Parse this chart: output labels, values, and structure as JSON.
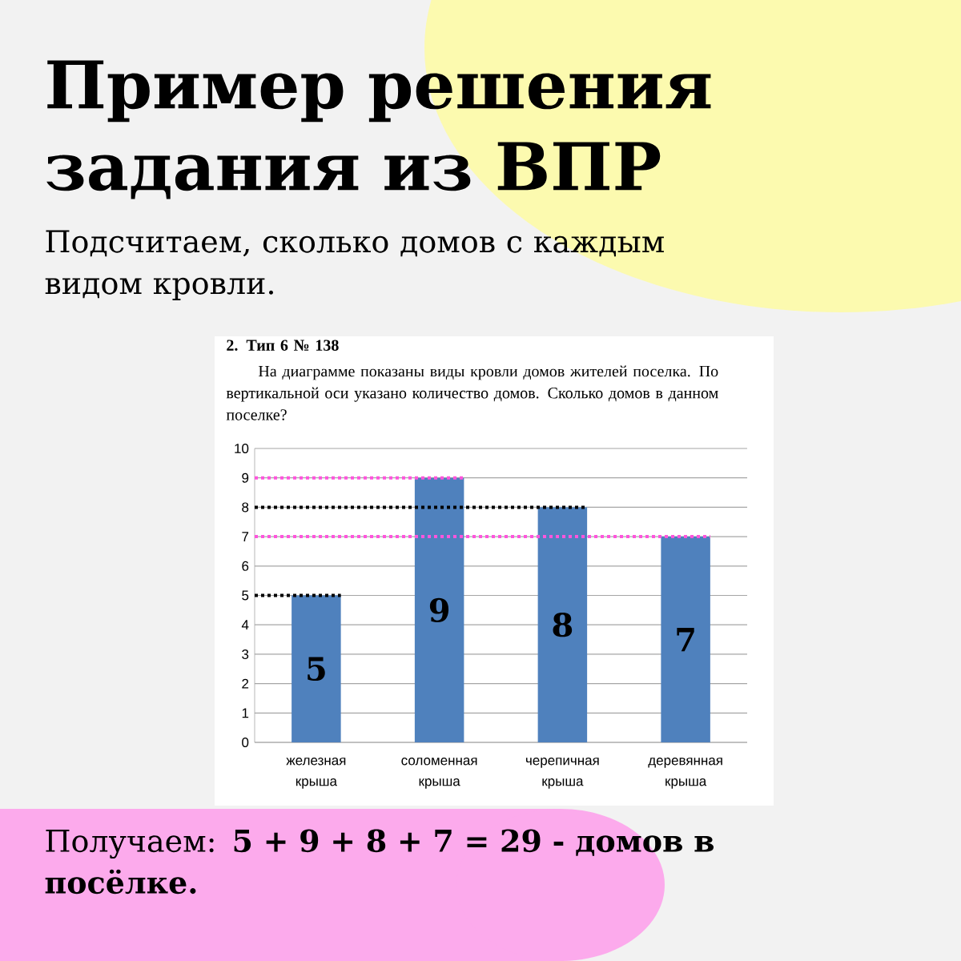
{
  "chart_data": {
    "type": "bar",
    "title": "Пример решения задания из ВПР",
    "subtitle": "Подсчитаем, сколько домов с каждым видом кровли.",
    "annotations": [
      "2. Тип 6 № 138",
      "На диаграмме показаны виды кровли домов жителей поселка. По вертикальной оси указано количество домов. Сколько домов в данном поселке?",
      "Получаем: **5 + 9 + 8 + 7 = 29 - домов в посёлке.**"
    ],
    "categories": [
      "железная крыша",
      "соломенная крыша",
      "черепичная крыша",
      "деревянная крыша"
    ],
    "values": [
      5,
      9,
      8,
      7
    ],
    "color": "#4f81bd",
    "ylim": [
      0,
      10
    ],
    "yticks": [
      0,
      1,
      2,
      3,
      4,
      5,
      6,
      7,
      8,
      9,
      10
    ],
    "grid": "y",
    "data_labels": true,
    "ref_lines": [
      {
        "axis": "y",
        "value": 9,
        "color": "#ff55dd",
        "line_style": "dotted"
      },
      {
        "axis": "y",
        "value": 8,
        "color": "#000000",
        "line_style": "dotted"
      },
      {
        "axis": "y",
        "value": 7,
        "color": "#ff55dd",
        "line_style": "dotted"
      },
      {
        "axis": "y",
        "value": 5,
        "color": "#000000",
        "line_style": "dotted"
      }
    ]
  }
}
